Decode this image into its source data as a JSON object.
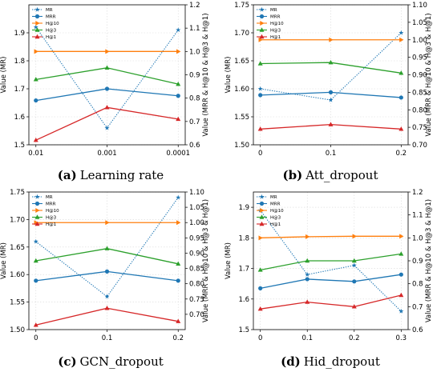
{
  "figure": {
    "colors": {
      "MR": "#1f77b4",
      "MRR": "#1f77b4",
      "H@10": "#ff7f0e",
      "H@3": "#2ca02c",
      "H@1": "#d62728"
    },
    "legend_position": "upper-left",
    "grid": true
  },
  "chart_data": [
    {
      "type": "line",
      "caption_label": "(a)",
      "caption_text": "Learning rate",
      "categories": [
        "0.01",
        "0.001",
        "0.0001"
      ],
      "ylabel": "Value (MR)",
      "ylabel_right": "Value (MRR & H@10 & H@3 & H@1)",
      "ylim": [
        1.5,
        2.0
      ],
      "y_ticks": [
        "1.5",
        "1.6",
        "1.7",
        "1.8",
        "1.9"
      ],
      "ylim_right": [
        0.6,
        1.2
      ],
      "y_ticks_right": [
        "0.6",
        "0.7",
        "0.8",
        "0.9",
        "1.0",
        "1.1",
        "1.2"
      ],
      "series": [
        {
          "name": "MR",
          "axis": "left",
          "values": [
            1.92,
            1.56,
            1.91
          ]
        },
        {
          "name": "MRR",
          "axis": "right",
          "values": [
            0.79,
            0.84,
            0.81
          ]
        },
        {
          "name": "H@10",
          "axis": "right",
          "values": [
            1.0,
            1.0,
            1.0
          ]
        },
        {
          "name": "H@3",
          "axis": "right",
          "values": [
            0.88,
            0.93,
            0.86
          ]
        },
        {
          "name": "H@1",
          "axis": "right",
          "values": [
            0.62,
            0.76,
            0.71
          ]
        }
      ]
    },
    {
      "type": "line",
      "caption_label": "(b)",
      "caption_text": "Att_dropout",
      "categories": [
        "0",
        "0.1",
        "0.2"
      ],
      "ylabel": "Value (MR)",
      "ylabel_right": "Value (MRR & H@10 & H@3 & H@1)",
      "ylim": [
        1.5,
        1.75
      ],
      "y_ticks": [
        "1.50",
        "1.55",
        "1.60",
        "1.65",
        "1.70",
        "1.75"
      ],
      "ylim_right": [
        0.7,
        1.1
      ],
      "y_ticks_right": [
        "0.70",
        "0.75",
        "0.80",
        "0.85",
        "0.90",
        "0.95",
        "1.00",
        "1.05",
        "1.10"
      ],
      "series": [
        {
          "name": "MR",
          "axis": "left",
          "values": [
            1.6,
            1.58,
            1.7
          ]
        },
        {
          "name": "MRR",
          "axis": "right",
          "values": [
            0.842,
            0.85,
            0.835
          ]
        },
        {
          "name": "H@10",
          "axis": "right",
          "values": [
            1.0,
            1.0,
            1.0
          ]
        },
        {
          "name": "H@3",
          "axis": "right",
          "values": [
            0.932,
            0.935,
            0.905
          ]
        },
        {
          "name": "H@1",
          "axis": "right",
          "values": [
            0.745,
            0.758,
            0.745
          ]
        }
      ]
    },
    {
      "type": "line",
      "caption_label": "(c)",
      "caption_text": "GCN_dropout",
      "categories": [
        "0",
        "0.1",
        "0.2"
      ],
      "ylabel": "Value (MR)",
      "ylabel_right": "Value (MRR & H@10 & H@3 & H@1)",
      "ylim": [
        1.5,
        1.75
      ],
      "y_ticks": [
        "1.50",
        "1.55",
        "1.60",
        "1.65",
        "1.70",
        "1.75"
      ],
      "ylim_right": [
        0.65,
        1.1
      ],
      "y_ticks_right": [
        "0.70",
        "0.75",
        "0.80",
        "0.85",
        "0.90",
        "0.95",
        "1.00",
        "1.05",
        "1.10"
      ],
      "series": [
        {
          "name": "MR",
          "axis": "left",
          "values": [
            1.66,
            1.56,
            1.74
          ]
        },
        {
          "name": "MRR",
          "axis": "right",
          "values": [
            0.81,
            0.84,
            0.81
          ]
        },
        {
          "name": "H@10",
          "axis": "right",
          "values": [
            1.0,
            1.0,
            1.0
          ]
        },
        {
          "name": "H@3",
          "axis": "right",
          "values": [
            0.875,
            0.915,
            0.865
          ]
        },
        {
          "name": "H@1",
          "axis": "right",
          "values": [
            0.665,
            0.72,
            0.677
          ]
        }
      ]
    },
    {
      "type": "line",
      "caption_label": "(d)",
      "caption_text": "Hid_dropout",
      "categories": [
        "0",
        "0.1",
        "0.2",
        "0.3"
      ],
      "ylabel": "Value (MR)",
      "ylabel_right": "Value (MRR & H@10 & H@3 & H@1)",
      "ylim": [
        1.5,
        1.95
      ],
      "y_ticks": [
        "1.5",
        "1.6",
        "1.7",
        "1.8",
        "1.9"
      ],
      "ylim_right": [
        0.6,
        1.2
      ],
      "y_ticks_right": [
        "0.6",
        "0.7",
        "0.8",
        "0.9",
        "1.0",
        "1.1",
        "1.2"
      ],
      "series": [
        {
          "name": "MR",
          "axis": "left",
          "values": [
            1.89,
            1.68,
            1.71,
            1.56
          ]
        },
        {
          "name": "MRR",
          "axis": "right",
          "values": [
            0.78,
            0.82,
            0.81,
            0.84
          ]
        },
        {
          "name": "H@10",
          "axis": "right",
          "values": [
            1.0,
            1.005,
            1.007,
            1.007
          ]
        },
        {
          "name": "H@3",
          "axis": "right",
          "values": [
            0.86,
            0.9,
            0.9,
            0.93
          ]
        },
        {
          "name": "H@1",
          "axis": "right",
          "values": [
            0.69,
            0.72,
            0.7,
            0.75
          ]
        }
      ]
    }
  ]
}
